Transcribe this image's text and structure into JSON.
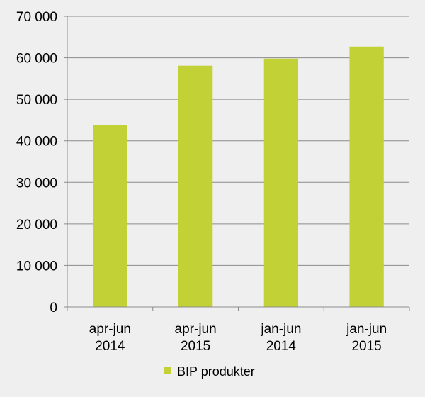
{
  "chart_data": {
    "type": "bar",
    "categories": [
      [
        "apr-jun",
        "2014"
      ],
      [
        "apr-jun",
        "2015"
      ],
      [
        "jan-jun",
        "2014"
      ],
      [
        "jan-jun",
        "2015"
      ]
    ],
    "series": [
      {
        "name": "BIP produkter",
        "values": [
          43800,
          58100,
          59800,
          62700
        ]
      }
    ],
    "ylim": [
      0,
      70000
    ],
    "yticks": [
      0,
      10000,
      20000,
      30000,
      40000,
      50000,
      60000,
      70000
    ],
    "ytick_labels": [
      "0",
      "10 000",
      "20 000",
      "30 000",
      "40 000",
      "50 000",
      "60 000",
      "70 000"
    ],
    "grid": true,
    "legend_position": "bottom",
    "colors": {
      "bar": "#c2d135",
      "background": "#efefef",
      "grid": "#8c8c8c",
      "axis": "#8c8c8c"
    }
  }
}
